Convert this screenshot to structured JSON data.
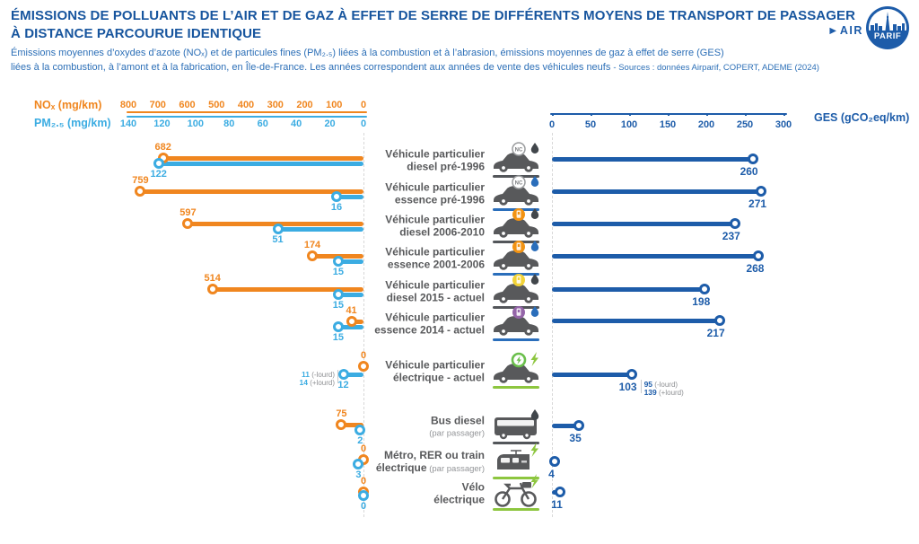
{
  "header": {
    "title_line1": "ÉMISSIONS DE POLLUANTS DE L’AIR ET DE GAZ À EFFET DE SERRE DE DIFFÉRENTS MOYENS DE TRANSPORT DE PASSAGER",
    "title_line2": "À DISTANCE PARCOURUE IDENTIQUE",
    "subtitle_line1": "Émissions moyennes d’oxydes d’azote (NOₓ) et de particules fines (PM₂.₅) liées à la combustion et à l’abrasion, émissions moyennes de gaz à effet de serre (GES)",
    "subtitle_line2": "liées à la combustion, à l’amont et à la fabrication, en Île-de-France. Les années correspondent  aux années de vente des véhicules neufs ",
    "sources": "- Sources : données Airparif, COPERT, ADEME (2024)",
    "logo": {
      "air": "►AIR",
      "parif": "PARIF"
    }
  },
  "chart_data": {
    "type": "bar",
    "subtype": "diverging-lollipop",
    "axes": {
      "nox": {
        "label": "NOₓ (mg/km)",
        "ticks": [
          800,
          700,
          600,
          500,
          400,
          300,
          200,
          100,
          0
        ],
        "range": [
          0,
          800
        ],
        "direction": "right-to-left"
      },
      "pm25": {
        "label": "PM₂.₅ (mg/km)",
        "ticks": [
          140,
          120,
          100,
          80,
          60,
          40,
          20,
          0
        ],
        "range": [
          0,
          140
        ],
        "direction": "right-to-left"
      },
      "ges": {
        "label": "GES (gCO₂eq/km)",
        "ticks": [
          0,
          50,
          100,
          150,
          200,
          250,
          300
        ],
        "range": [
          0,
          300
        ],
        "direction": "left-to-right"
      }
    },
    "rows": [
      {
        "label_lines": [
          "Véhicule particulier",
          "diesel pré-1996"
        ],
        "sublabel": "",
        "sublabel_placement": "",
        "icon": "car",
        "badge": "nc",
        "mark": "drop-dark",
        "underline": "dark",
        "nox": 682,
        "pm25": 122,
        "ges": 260
      },
      {
        "label_lines": [
          "Véhicule particulier",
          "essence pré-1996"
        ],
        "sublabel": "",
        "sublabel_placement": "",
        "icon": "car",
        "badge": "nc",
        "mark": "drop-blue",
        "underline": "blue",
        "nox": 759,
        "pm25": 16,
        "ges": 271
      },
      {
        "label_lines": [
          "Véhicule particulier",
          "diesel 2006-2010"
        ],
        "sublabel": "",
        "sublabel_placement": "",
        "icon": "car",
        "badge": "critair-orange",
        "mark": "drop-dark",
        "underline": "dark",
        "nox": 597,
        "pm25": 51,
        "ges": 237
      },
      {
        "label_lines": [
          "Véhicule particulier",
          "essence 2001-2006"
        ],
        "sublabel": "",
        "sublabel_placement": "",
        "icon": "car",
        "badge": "critair-orange",
        "mark": "drop-blue",
        "underline": "blue",
        "nox": 174,
        "pm25": 15,
        "ges": 268
      },
      {
        "label_lines": [
          "Véhicule particulier",
          "diesel 2015 - actuel"
        ],
        "sublabel": "",
        "sublabel_placement": "",
        "icon": "car",
        "badge": "critair-yellow",
        "mark": "drop-dark",
        "underline": "dark",
        "nox": 514,
        "pm25": 15,
        "ges": 198
      },
      {
        "label_lines": [
          "Véhicule particulier",
          "essence 2014 - actuel"
        ],
        "sublabel": "",
        "sublabel_placement": "",
        "icon": "car",
        "badge": "critair-purple",
        "mark": "drop-blue",
        "underline": "blue",
        "nox": 41,
        "pm25": 15,
        "ges": 217
      },
      {
        "label_lines": [
          "Véhicule particulier",
          "électrique - actuel"
        ],
        "sublabel": "",
        "sublabel_placement": "",
        "icon": "car",
        "badge": "critair-green",
        "mark": "bolt",
        "underline": "green",
        "nox": 0,
        "pm25": 12,
        "ges": 103,
        "pm25_note": [
          [
            "11",
            "(-lourd)"
          ],
          [
            "14",
            "(+lourd)"
          ]
        ],
        "ges_note": [
          [
            "95",
            "(-lourd)"
          ],
          [
            "139",
            "(+lourd)"
          ]
        ]
      },
      {
        "label_lines": [
          "Bus diesel"
        ],
        "sublabel": "(par passager)",
        "sublabel_placement": "below",
        "icon": "bus",
        "badge": "none",
        "mark": "drop-dark",
        "underline": "dark",
        "nox": 75,
        "pm25": 2,
        "ges": 35
      },
      {
        "label_lines": [
          "Métro, RER ou train",
          "électrique"
        ],
        "sublabel": "(par passager)",
        "sublabel_placement": "inline",
        "icon": "tram",
        "badge": "none",
        "mark": "bolt",
        "underline": "green",
        "nox": 0,
        "pm25": 3,
        "ges": 4
      },
      {
        "label_lines": [
          "Vélo",
          "électrique"
        ],
        "sublabel": "",
        "sublabel_placement": "",
        "icon": "bike",
        "badge": "none",
        "mark": "bolt",
        "underline": "green",
        "nox": 0,
        "pm25": 0,
        "ges": 11
      }
    ],
    "colors": {
      "nox_orange": "#F0861F",
      "pm_blue": "#3BACE2",
      "ges_blue": "#1D5CA9",
      "label_gray": "#58595B",
      "note_gray": "#8E9093",
      "underline_dark": "#53565A",
      "underline_blue": "#2A6EBB",
      "underline_green": "#8DC63F",
      "badge_orange": "#F29313",
      "badge_yellow": "#F2D338",
      "badge_purple": "#9465A8",
      "badge_green": "#6ABF4B",
      "drop_dark": "#41464B",
      "drop_blue": "#2A6EBB"
    }
  }
}
